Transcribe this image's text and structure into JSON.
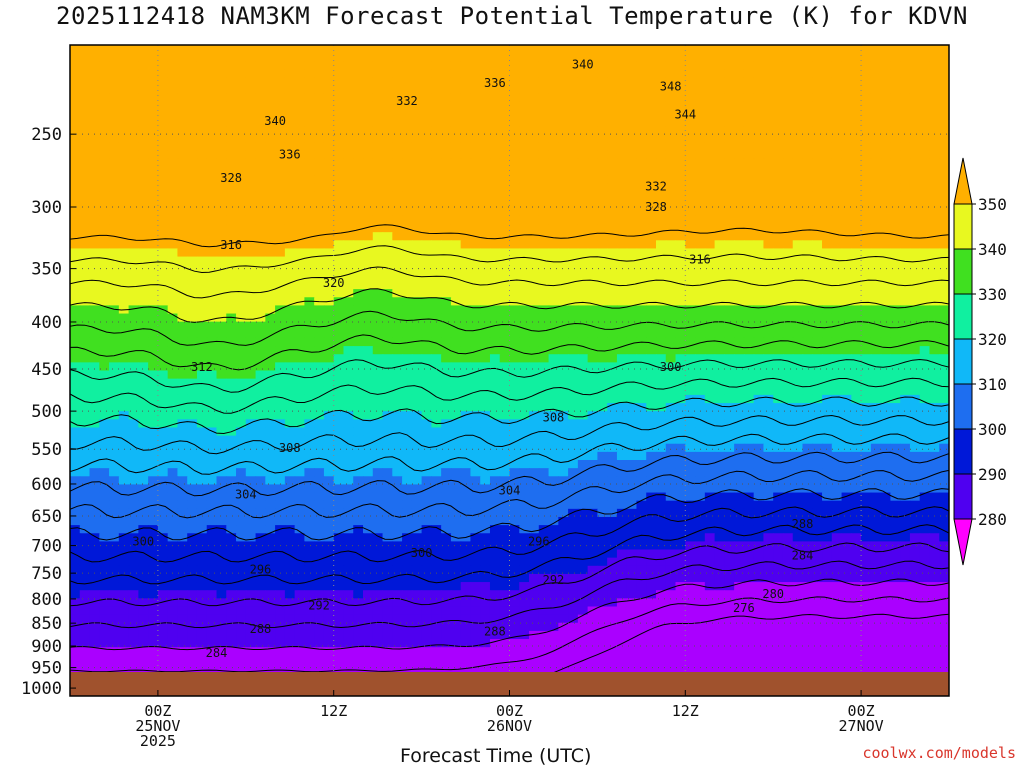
{
  "chart_data": {
    "type": "heatmap",
    "title": "2025112418 NAM3KM Forecast Potential Temperature (K) for KDVN",
    "xlabel": "Forecast Time (UTC)",
    "ylabel": "",
    "credit": "coolwx.com/models",
    "y_ticks": [
      "250",
      "300",
      "350",
      "400",
      "450",
      "500",
      "550",
      "600",
      "650",
      "700",
      "750",
      "800",
      "850",
      "900",
      "950",
      "1000"
    ],
    "x_ticks": [
      {
        "hour": 6,
        "lines": [
          "00Z",
          "25NOV",
          "2025"
        ]
      },
      {
        "hour": 18,
        "lines": [
          "12Z"
        ]
      },
      {
        "hour": 30,
        "lines": [
          "00Z",
          "26NOV"
        ]
      },
      {
        "hour": 42,
        "lines": [
          "12Z"
        ]
      },
      {
        "hour": 54,
        "lines": [
          "00Z",
          "27NOV"
        ]
      }
    ],
    "x_range_hours": [
      0,
      60
    ],
    "y_range_hpa": [
      200,
      1020
    ],
    "colorbar": {
      "levels": [
        "280",
        "290",
        "300",
        "310",
        "320",
        "330",
        "340",
        "350"
      ],
      "colors": [
        "#ff00ff",
        "#aa00ff",
        "#4f00f0",
        "#0018d8",
        "#1e6ef0",
        "#10b8f8",
        "#10f0a0",
        "#40e020",
        "#e8f820",
        "#ffb000"
      ]
    },
    "contour_labels": [
      {
        "text": "340",
        "hour": 35,
        "p": 210
      },
      {
        "text": "336",
        "hour": 29,
        "p": 220
      },
      {
        "text": "332",
        "hour": 23,
        "p": 230
      },
      {
        "text": "348",
        "hour": 41,
        "p": 222
      },
      {
        "text": "344",
        "hour": 42,
        "p": 238
      },
      {
        "text": "340",
        "hour": 14,
        "p": 242
      },
      {
        "text": "336",
        "hour": 15,
        "p": 263
      },
      {
        "text": "328",
        "hour": 11,
        "p": 279
      },
      {
        "text": "332",
        "hour": 40,
        "p": 285
      },
      {
        "text": "328",
        "hour": 40,
        "p": 300
      },
      {
        "text": "316",
        "hour": 11,
        "p": 330
      },
      {
        "text": "316",
        "hour": 43,
        "p": 342
      },
      {
        "text": "320",
        "hour": 18,
        "p": 363
      },
      {
        "text": "312",
        "hour": 9,
        "p": 448
      },
      {
        "text": "300",
        "hour": 41,
        "p": 448
      },
      {
        "text": "308",
        "hour": 33,
        "p": 508
      },
      {
        "text": "308",
        "hour": 15,
        "p": 548
      },
      {
        "text": "304",
        "hour": 30,
        "p": 610
      },
      {
        "text": "304",
        "hour": 12,
        "p": 616
      },
      {
        "text": "288",
        "hour": 50,
        "p": 663
      },
      {
        "text": "300",
        "hour": 5,
        "p": 693
      },
      {
        "text": "296",
        "hour": 32,
        "p": 693
      },
      {
        "text": "300",
        "hour": 24,
        "p": 713
      },
      {
        "text": "284",
        "hour": 50,
        "p": 718
      },
      {
        "text": "296",
        "hour": 13,
        "p": 743
      },
      {
        "text": "292",
        "hour": 33,
        "p": 763
      },
      {
        "text": "280",
        "hour": 48,
        "p": 790
      },
      {
        "text": "292",
        "hour": 17,
        "p": 813
      },
      {
        "text": "276",
        "hour": 46,
        "p": 818
      },
      {
        "text": "288",
        "hour": 13,
        "p": 863
      },
      {
        "text": "288",
        "hour": 29,
        "p": 868
      },
      {
        "text": "284",
        "hour": 10,
        "p": 916
      }
    ]
  }
}
